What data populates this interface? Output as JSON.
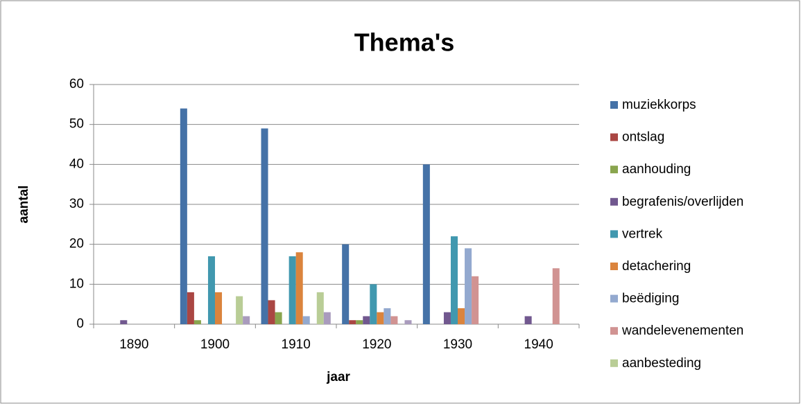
{
  "chart_data": {
    "type": "bar",
    "title": "Thema's",
    "xlabel": "jaar",
    "ylabel": "aantal",
    "categories": [
      "1890",
      "1900",
      "1910",
      "1920",
      "1930",
      "1940"
    ],
    "series": [
      {
        "name": "muziekkorps",
        "color": "#4572a7",
        "values": [
          0,
          54,
          49,
          20,
          40,
          0
        ]
      },
      {
        "name": "ontslag",
        "color": "#aa4643",
        "values": [
          0,
          8,
          6,
          1,
          0,
          0
        ]
      },
      {
        "name": "aanhouding",
        "color": "#89a54e",
        "values": [
          0,
          1,
          3,
          1,
          0,
          0
        ]
      },
      {
        "name": "begrafenis/overlijden",
        "color": "#71588f",
        "values": [
          1,
          0,
          0,
          2,
          3,
          2
        ]
      },
      {
        "name": "vertrek",
        "color": "#4198af",
        "values": [
          0,
          17,
          17,
          10,
          22,
          0
        ]
      },
      {
        "name": "detachering",
        "color": "#db843d",
        "values": [
          0,
          8,
          18,
          3,
          4,
          0
        ]
      },
      {
        "name": "beëdiging",
        "color": "#93a9cf",
        "values": [
          0,
          0,
          2,
          4,
          19,
          0
        ]
      },
      {
        "name": "wandelevenementen",
        "color": "#d19392",
        "values": [
          0,
          0,
          0,
          2,
          12,
          14
        ]
      },
      {
        "name": "aanbesteding",
        "color": "#b9cd96",
        "values": [
          0,
          7,
          8,
          0,
          0,
          0
        ]
      },
      {
        "color": "#a99bbd",
        "values": [
          0,
          2,
          3,
          1,
          0,
          0
        ]
      }
    ],
    "ylim": [
      0,
      60
    ],
    "yticks": [
      0,
      10,
      20,
      30,
      40,
      50,
      60
    ],
    "grid": true,
    "legend": "right"
  }
}
